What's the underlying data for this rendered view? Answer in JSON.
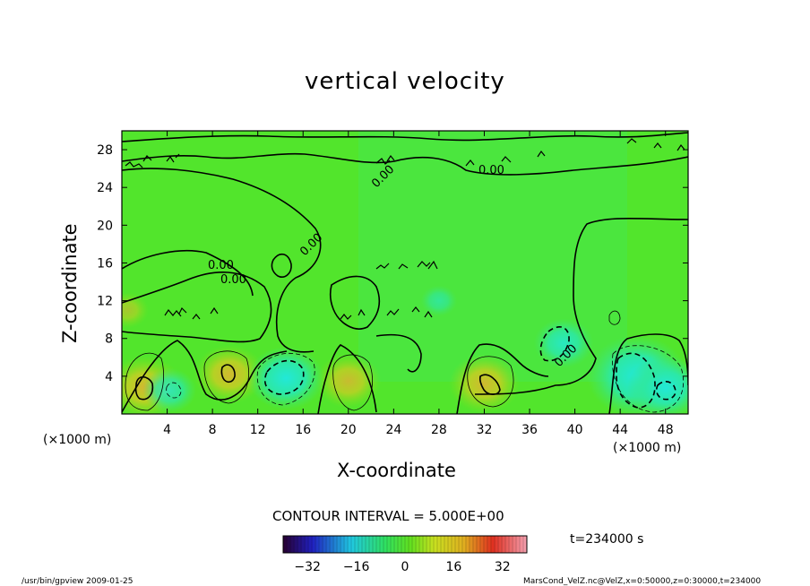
{
  "chart_data": {
    "type": "heatmap",
    "title": "vertical velocity",
    "xlabel": "X-coordinate",
    "ylabel": "Z-coordinate",
    "x_unit_left": "(×1000 m)",
    "x_unit_right": "(×1000 m)",
    "xlim": [
      0,
      50
    ],
    "ylim": [
      0,
      30
    ],
    "x_ticks": [
      4,
      8,
      12,
      16,
      20,
      24,
      28,
      32,
      36,
      40,
      44,
      48
    ],
    "y_ticks": [
      4,
      8,
      12,
      16,
      20,
      24,
      28
    ],
    "contour_interval_label": "CONTOUR INTERVAL = 5.000E+00",
    "contour_labels": [
      "0.00",
      "0.00",
      "0.00",
      "0.00",
      "0.00",
      "0.00"
    ],
    "colorbar": {
      "min": -40,
      "max": 40,
      "ticks": [
        -32,
        -16,
        0,
        16,
        32
      ]
    },
    "features": [
      {
        "kind": "updraft",
        "x": 2.0,
        "z": 2.8,
        "value": 9
      },
      {
        "kind": "updraft",
        "x": 9.5,
        "z": 4.2,
        "value": 8
      },
      {
        "kind": "updraft",
        "x": 20.0,
        "z": 3.5,
        "value": 7
      },
      {
        "kind": "updraft",
        "x": 32.0,
        "z": 3.2,
        "value": 8
      },
      {
        "kind": "updraft",
        "x": 0.5,
        "z": 11.0,
        "value": 3
      },
      {
        "kind": "downdraft",
        "x": 4.2,
        "z": 2.5,
        "value": -5
      },
      {
        "kind": "downdraft",
        "x": 14.5,
        "z": 3.8,
        "value": -9
      },
      {
        "kind": "downdraft",
        "x": 39.0,
        "z": 7.5,
        "value": -6
      },
      {
        "kind": "downdraft",
        "x": 45.5,
        "z": 4.0,
        "value": -13
      },
      {
        "kind": "downdraft",
        "x": 48.0,
        "z": 2.8,
        "value": -9
      },
      {
        "kind": "downdraft",
        "x": 28.0,
        "z": 12.0,
        "value": -2
      }
    ]
  },
  "info": {
    "time": "t=234000 s",
    "footer_left": "/usr/bin/gpview   2009-01-25",
    "footer_right": "MarsCond_VelZ.nc@VelZ,x=0:50000,z=0:30000,t=234000"
  }
}
